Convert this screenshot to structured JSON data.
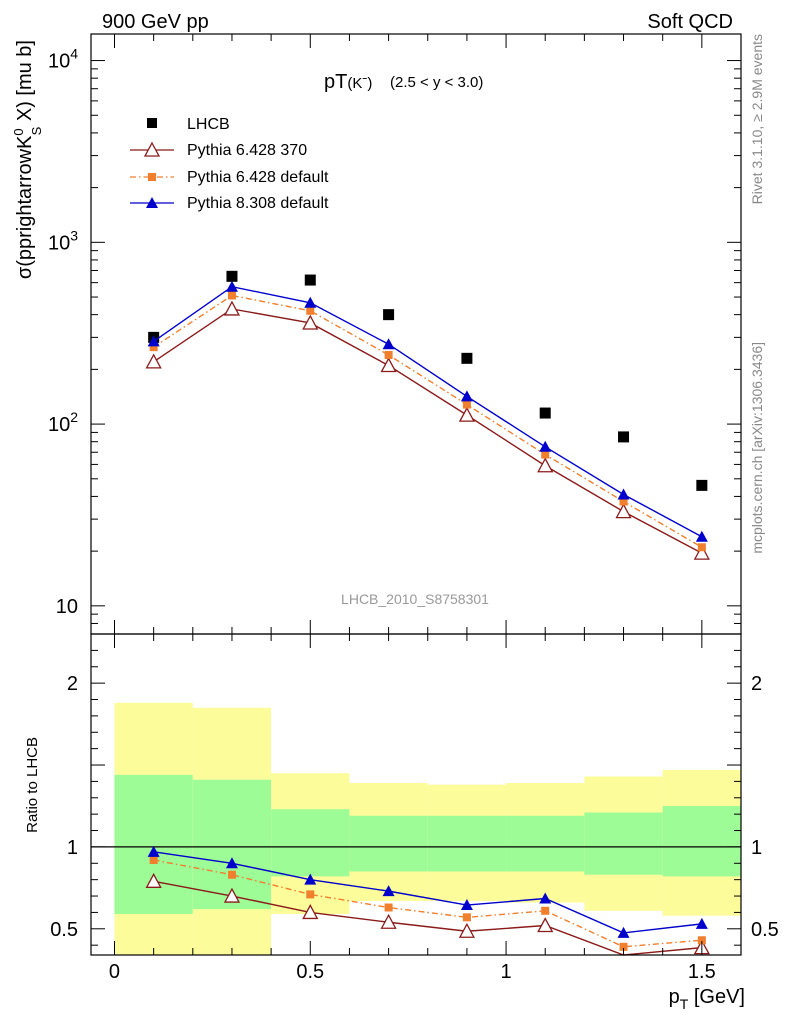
{
  "header": {
    "left": "900 GeV pp",
    "right": "Soft QCD"
  },
  "side_labels": {
    "rivet": "Rivet 3.1.10, ≥ 2.9M events",
    "source": "mcplots.cern.ch [arXiv:1306.3436]"
  },
  "chart_data": [
    {
      "type": "scatter",
      "title": "pT(Kˉ)",
      "title_main": "pT",
      "title_particle": "(Kˉ)",
      "subtitle": "(2.5 < y < 3.0)",
      "ylabel": "σ(pprightarrowK⁰S X) [mu b]",
      "ylabel_main": "σ(pprightarrowK",
      "ylabel_sup": "0",
      "ylabel_sub": "S",
      "ylabel_tail": " X) [mu b]",
      "yscale": "log",
      "ylim": [
        7,
        14000
      ],
      "xlim": [
        -0.06,
        1.6
      ],
      "y_tick_labels": [
        {
          "value": 10,
          "label": "10"
        },
        {
          "value": 100,
          "label": "10",
          "exp": "2"
        },
        {
          "value": 1000,
          "label": "10",
          "exp": "3"
        },
        {
          "value": 10000,
          "label": "10",
          "exp": "4"
        }
      ],
      "watermark": "LHCB_2010_S8758301",
      "legend_position": "top-left",
      "x": [
        0.1,
        0.3,
        0.5,
        0.7,
        0.9,
        1.1,
        1.3,
        1.5
      ],
      "series": [
        {
          "name": "LHCB",
          "marker": "square",
          "color": "#000000",
          "values": [
            300,
            650,
            620,
            400,
            230,
            115,
            85,
            46
          ]
        },
        {
          "name": "Pythia 6.428 370",
          "marker": "open-triangle",
          "color": "#8b1a1a",
          "line": "solid",
          "values": [
            220,
            430,
            360,
            210,
            112,
            59,
            33,
            19.5
          ]
        },
        {
          "name": "Pythia 6.428 default",
          "marker": "square-small",
          "color": "#f07f2e",
          "line": "dashdot",
          "values": [
            265,
            510,
            420,
            240,
            128,
            68,
            37.5,
            21
          ]
        },
        {
          "name": "Pythia 8.308 default",
          "marker": "triangle",
          "color": "#0000cc",
          "line": "solid",
          "values": [
            285,
            570,
            465,
            275,
            142,
            75,
            41,
            24
          ]
        }
      ]
    },
    {
      "type": "line",
      "ylabel": "Ratio to LHCB",
      "xlabel": "p",
      "xlabel_sub": "T",
      "xlabel_tail": " [GeV]",
      "ylim": [
        0.34,
        2.3
      ],
      "xlim": [
        -0.06,
        1.6
      ],
      "x_ticks": [
        {
          "value": 0,
          "label": "0"
        },
        {
          "value": 0.5,
          "label": "0.5"
        },
        {
          "value": 1,
          "label": "1"
        },
        {
          "value": 1.5,
          "label": "1.5"
        }
      ],
      "y_ticks": [
        {
          "value": 0.5,
          "label": "0.5"
        },
        {
          "value": 1,
          "label": "1"
        },
        {
          "value": 2,
          "label": "2"
        }
      ],
      "bands": [
        {
          "xlo": 0.0,
          "xhi": 0.2,
          "inner": [
            0.59,
            1.44
          ],
          "outer": [
            0.25,
            1.88
          ]
        },
        {
          "xlo": 0.2,
          "xhi": 0.4,
          "inner": [
            0.62,
            1.41
          ],
          "outer": [
            0.25,
            1.85
          ]
        },
        {
          "xlo": 0.4,
          "xhi": 0.6,
          "inner": [
            0.82,
            1.23
          ],
          "outer": [
            0.59,
            1.45
          ]
        },
        {
          "xlo": 0.6,
          "xhi": 0.8,
          "inner": [
            0.85,
            1.19
          ],
          "outer": [
            0.67,
            1.39
          ]
        },
        {
          "xlo": 0.8,
          "xhi": 1.0,
          "inner": [
            0.85,
            1.19
          ],
          "outer": [
            0.67,
            1.38
          ]
        },
        {
          "xlo": 1.0,
          "xhi": 1.2,
          "inner": [
            0.85,
            1.19
          ],
          "outer": [
            0.66,
            1.39
          ]
        },
        {
          "xlo": 1.2,
          "xhi": 1.4,
          "inner": [
            0.83,
            1.21
          ],
          "outer": [
            0.61,
            1.43
          ]
        },
        {
          "xlo": 1.4,
          "xhi": 1.6,
          "inner": [
            0.82,
            1.25
          ],
          "outer": [
            0.58,
            1.47
          ]
        }
      ],
      "x": [
        0.1,
        0.3,
        0.5,
        0.7,
        0.9,
        1.1,
        1.3,
        1.5
      ],
      "series": [
        {
          "name": "Pythia 6.428 370",
          "marker": "open-triangle",
          "color": "#8b1a1a",
          "line": "solid",
          "values": [
            0.79,
            0.7,
            0.6,
            0.54,
            0.485,
            0.52,
            0.33,
            0.385
          ]
        },
        {
          "name": "Pythia 6.428 default",
          "marker": "square-small",
          "color": "#f07f2e",
          "line": "dashdot",
          "values": [
            0.92,
            0.83,
            0.71,
            0.63,
            0.57,
            0.61,
            0.39,
            0.43
          ]
        },
        {
          "name": "Pythia 8.308 default",
          "marker": "triangle",
          "color": "#0000cc",
          "line": "solid",
          "values": [
            0.97,
            0.9,
            0.8,
            0.73,
            0.645,
            0.685,
            0.475,
            0.53
          ]
        }
      ],
      "colors": {
        "inner_band": "#9efc97",
        "outer_band": "#fcfc9a"
      }
    }
  ]
}
